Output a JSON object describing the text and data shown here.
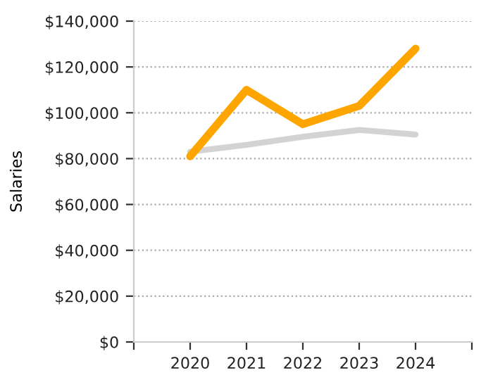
{
  "chart_data": {
    "type": "line",
    "ylabel": "Salaries",
    "x": [
      2020,
      2021,
      2022,
      2023,
      2024
    ],
    "xlim": [
      2019,
      2025
    ],
    "xticks": [
      {
        "value": 2019,
        "label": null
      },
      2020,
      2021,
      2022,
      2023,
      2024,
      {
        "value": 2025,
        "label": null
      }
    ],
    "ylim": [
      0,
      140000
    ],
    "yticks": [
      {
        "value": 0,
        "label": "$0"
      },
      {
        "value": 20000,
        "label": "$20,000"
      },
      {
        "value": 40000,
        "label": "$40,000"
      },
      {
        "value": 60000,
        "label": "$60,000"
      },
      {
        "value": 80000,
        "label": "$80,000"
      },
      {
        "value": 100000,
        "label": "$100,000"
      },
      {
        "value": 120000,
        "label": "$120,000"
      },
      {
        "value": 140000,
        "label": "$140,000"
      }
    ],
    "grid": "y",
    "legend": false,
    "marker": "none",
    "line_style": "solid",
    "series": [
      {
        "color": "#d3d3d3",
        "values": [
          83000,
          86000,
          89500,
          92500,
          90500
        ]
      },
      {
        "color": "#ffa500",
        "values": [
          81000,
          110000,
          95000,
          103000,
          128000
        ]
      }
    ]
  }
}
